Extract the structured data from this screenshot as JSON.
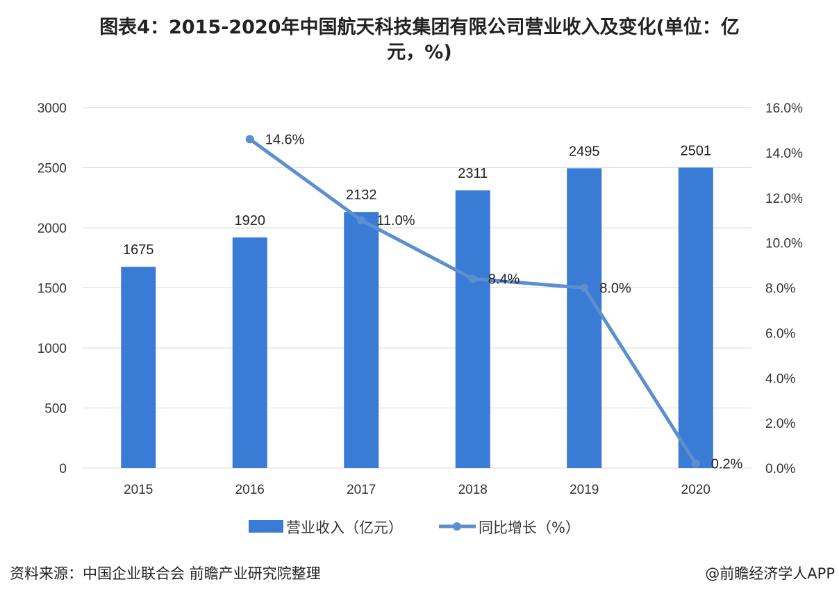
{
  "title_line1": "图表4：2015-2020年中国航天科技集团有限公司营业收入及变化(单位：亿",
  "title_line2": "元，%)",
  "source": "资料来源：中国企业联合会 前瞻产业研究院整理",
  "brand": "@前瞻经济学人APP",
  "colors": {
    "bar": "#3a7bd5",
    "line": "#5b8fd0",
    "grid": "#d9d9d9"
  },
  "chart_data": {
    "type": "bar+line",
    "categories": [
      "2015",
      "2016",
      "2017",
      "2018",
      "2019",
      "2020"
    ],
    "series": [
      {
        "name": "营业收入（亿元）",
        "type": "bar",
        "axis": "left",
        "values": [
          1675,
          1920,
          2132,
          2311,
          2495,
          2501
        ],
        "labels": [
          "1675",
          "1920",
          "2132",
          "2311",
          "2495",
          "2501"
        ]
      },
      {
        "name": "同比增长（%）",
        "type": "line",
        "axis": "right",
        "values": [
          null,
          14.6,
          11.0,
          8.4,
          8.0,
          0.2
        ],
        "labels": [
          "",
          "14.6%",
          "11.0%",
          "8.4%",
          "8.0%",
          "0.2%"
        ]
      }
    ],
    "left_axis": {
      "ylim": [
        0,
        3000
      ],
      "ticks": [
        "0",
        "500",
        "1000",
        "1500",
        "2000",
        "2500",
        "3000"
      ]
    },
    "right_axis": {
      "ylim": [
        0,
        16
      ],
      "ticks": [
        "0.0%",
        "2.0%",
        "4.0%",
        "6.0%",
        "8.0%",
        "10.0%",
        "12.0%",
        "14.0%",
        "16.0%"
      ]
    },
    "grid": true,
    "legend": "bottom"
  }
}
